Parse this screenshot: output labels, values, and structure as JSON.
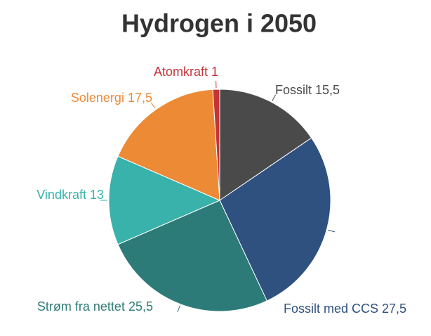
{
  "chart_data": {
    "type": "pie",
    "title": "Hydrogen i 2050",
    "categories": [
      "Fossilt",
      "Fossilt med CCS",
      "Strøm fra nettet",
      "Vindkraft",
      "Solenergi",
      "Atomkraft"
    ],
    "values": [
      15.5,
      27.5,
      25.5,
      13,
      17.5,
      1
    ],
    "value_labels": [
      "15,5",
      "27,5",
      "25,5",
      "13",
      "17,5",
      "1"
    ],
    "colors": [
      "#4a4a4a",
      "#2e5180",
      "#2d7b78",
      "#38b2aa",
      "#ed8a35",
      "#c4343a"
    ]
  }
}
